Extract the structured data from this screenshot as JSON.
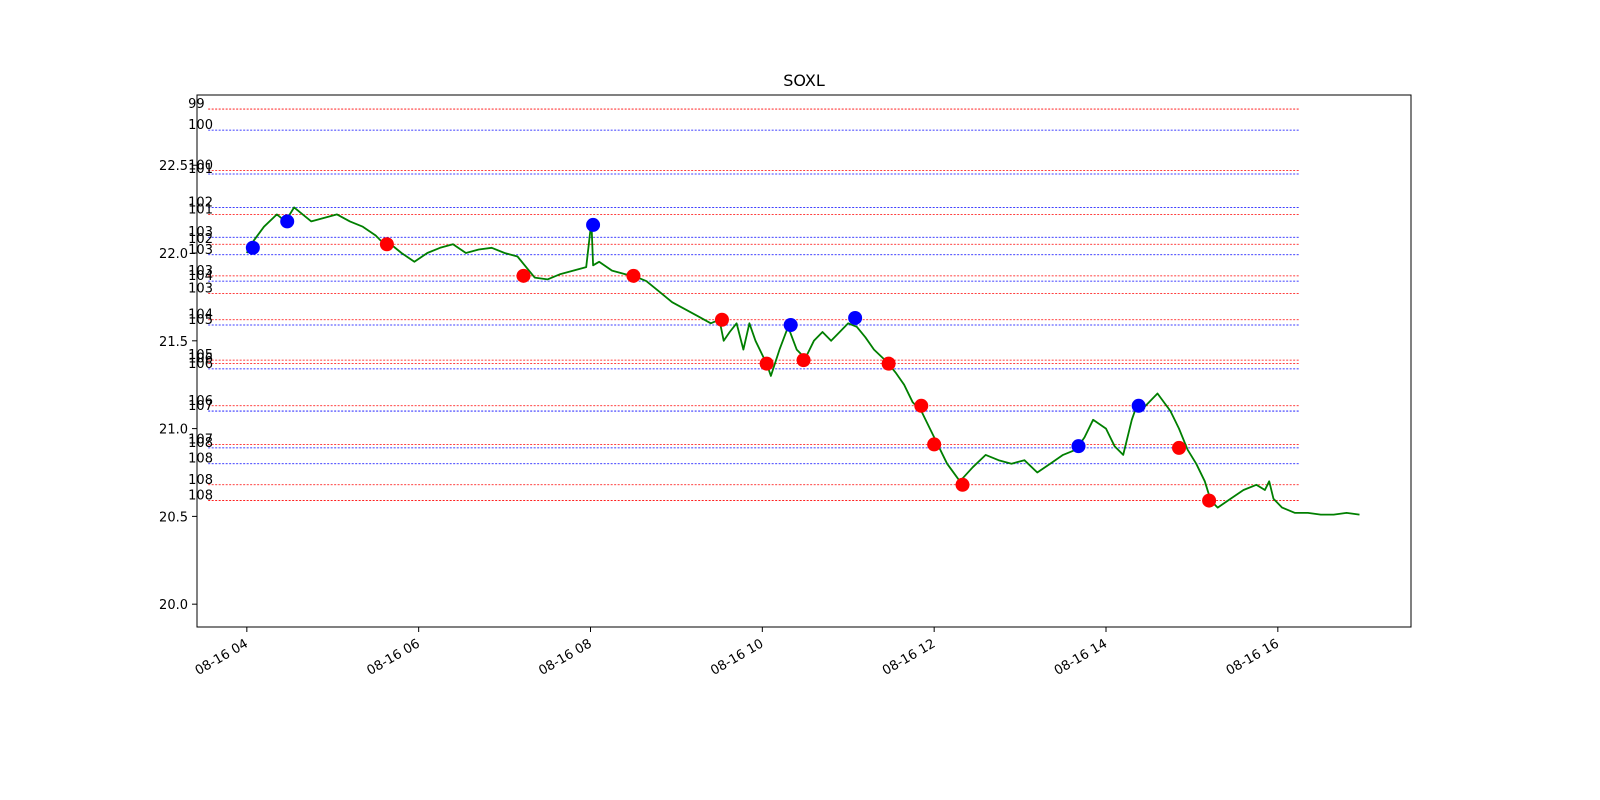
{
  "chart_data": {
    "type": "line",
    "title": "SOXL",
    "xlabel": "",
    "ylabel": "",
    "x_ticks": [
      "08-16 04",
      "08-16 06",
      "08-16 08",
      "08-16 10",
      "08-16 12",
      "08-16 14",
      "08-16 16"
    ],
    "x_tick_hours": [
      4,
      6,
      8,
      10,
      12,
      14,
      16
    ],
    "xlim_hours": [
      3.42,
      17.55
    ],
    "y_ticks": [
      "20.0",
      "20.5",
      "21.0",
      "21.5",
      "22.0",
      "22.5"
    ],
    "y_tick_values": [
      20.0,
      20.5,
      21.0,
      21.5,
      22.0,
      22.5
    ],
    "ylim": [
      19.87,
      22.9
    ],
    "grid": false,
    "colors": {
      "price": "#007f00",
      "buy": "#0000ff",
      "sell": "#ff0000",
      "frame": "#000000"
    },
    "series": [
      {
        "hours": [
          4.0,
          4.08,
          4.2,
          4.35,
          4.45,
          4.55,
          4.65,
          4.75,
          4.9,
          5.05,
          5.2,
          5.35,
          5.5,
          5.6,
          5.7,
          5.8,
          5.95,
          6.1,
          6.25,
          6.4,
          6.55,
          6.7,
          6.85,
          7.0,
          7.15,
          7.25,
          7.35,
          7.5,
          7.65,
          7.8,
          7.95,
          8.01,
          8.03,
          8.1,
          8.25,
          8.4,
          8.5,
          8.65,
          8.8,
          8.95,
          9.1,
          9.25,
          9.4,
          9.5,
          9.55,
          9.62,
          9.7,
          9.78,
          9.85,
          9.92,
          10.0,
          10.05,
          10.1,
          10.2,
          10.3,
          10.4,
          10.5,
          10.6,
          10.7,
          10.8,
          10.9,
          11.0,
          11.1,
          11.2,
          11.3,
          11.45,
          11.55,
          11.65,
          11.75,
          11.85,
          12.0,
          12.15,
          12.3,
          12.45,
          12.6,
          12.75,
          12.9,
          13.05,
          13.2,
          13.35,
          13.5,
          13.65,
          13.75,
          13.85,
          14.0,
          14.1,
          14.2,
          14.3,
          14.35,
          14.4,
          14.5,
          14.6,
          14.75,
          14.85,
          14.95,
          15.05,
          15.15,
          15.22,
          15.3,
          15.45,
          15.6,
          15.75,
          15.85,
          15.9,
          15.95,
          16.05,
          16.2,
          16.35,
          16.5,
          16.65,
          16.8,
          16.95
        ],
        "values": [
          22.0,
          22.07,
          22.15,
          22.22,
          22.18,
          22.26,
          22.22,
          22.18,
          22.2,
          22.22,
          22.18,
          22.15,
          22.1,
          22.05,
          22.04,
          22.0,
          21.95,
          22.0,
          22.03,
          22.05,
          22.0,
          22.02,
          22.03,
          22.0,
          21.98,
          21.92,
          21.86,
          21.85,
          21.88,
          21.9,
          21.92,
          22.18,
          21.93,
          21.95,
          21.9,
          21.88,
          21.87,
          21.84,
          21.78,
          21.72,
          21.68,
          21.64,
          21.6,
          21.62,
          21.5,
          21.55,
          21.6,
          21.45,
          21.6,
          21.5,
          21.42,
          21.37,
          21.3,
          21.45,
          21.58,
          21.45,
          21.4,
          21.5,
          21.55,
          21.5,
          21.55,
          21.6,
          21.58,
          21.52,
          21.45,
          21.38,
          21.32,
          21.25,
          21.15,
          21.1,
          20.95,
          20.8,
          20.7,
          20.78,
          20.85,
          20.82,
          20.8,
          20.82,
          20.75,
          20.8,
          20.85,
          20.88,
          20.95,
          21.05,
          21.0,
          20.9,
          20.85,
          21.05,
          21.12,
          21.1,
          21.15,
          21.2,
          21.1,
          21.0,
          20.88,
          20.8,
          20.7,
          20.59,
          20.55,
          20.6,
          20.65,
          20.68,
          20.65,
          20.7,
          20.6,
          20.55,
          20.52,
          20.52,
          20.51,
          20.51,
          20.52,
          20.51
        ]
      }
    ],
    "buy_markers": {
      "hours": [
        4.07,
        4.47,
        8.03,
        10.33,
        11.08,
        13.68,
        14.38
      ],
      "values": [
        22.03,
        22.18,
        22.16,
        21.59,
        21.63,
        20.9,
        21.13
      ]
    },
    "sell_markers": {
      "hours": [
        5.63,
        7.22,
        8.5,
        9.53,
        10.05,
        10.48,
        11.47,
        11.85,
        12.0,
        12.33,
        14.85,
        15.2
      ],
      "values": [
        22.05,
        21.87,
        21.87,
        21.62,
        21.37,
        21.39,
        21.37,
        21.13,
        20.91,
        20.68,
        20.89,
        20.59
      ]
    },
    "levels": [
      {
        "label": "99",
        "value": 22.82,
        "color": "sell"
      },
      {
        "label": "100",
        "value": 22.7,
        "color": "buy"
      },
      {
        "label": "100",
        "value": 22.47,
        "color": "sell"
      },
      {
        "label": "101",
        "value": 22.45,
        "color": "buy"
      },
      {
        "label": "102",
        "value": 22.26,
        "color": "buy"
      },
      {
        "label": "101",
        "value": 22.22,
        "color": "sell"
      },
      {
        "label": "103",
        "value": 22.09,
        "color": "buy"
      },
      {
        "label": "102",
        "value": 22.05,
        "color": "sell"
      },
      {
        "label": "103",
        "value": 21.99,
        "color": "buy"
      },
      {
        "label": "103",
        "value": 21.87,
        "color": "sell"
      },
      {
        "label": "104",
        "value": 21.84,
        "color": "buy"
      },
      {
        "label": "103",
        "value": 21.77,
        "color": "sell"
      },
      {
        "label": "104",
        "value": 21.62,
        "color": "sell"
      },
      {
        "label": "105",
        "value": 21.59,
        "color": "buy"
      },
      {
        "label": "105",
        "value": 21.39,
        "color": "sell"
      },
      {
        "label": "106",
        "value": 21.37,
        "color": "sell"
      },
      {
        "label": "106",
        "value": 21.34,
        "color": "buy"
      },
      {
        "label": "106",
        "value": 21.13,
        "color": "sell"
      },
      {
        "label": "107",
        "value": 21.1,
        "color": "buy"
      },
      {
        "label": "107",
        "value": 20.91,
        "color": "sell"
      },
      {
        "label": "108",
        "value": 20.89,
        "color": "buy"
      },
      {
        "label": "108",
        "value": 20.8,
        "color": "buy"
      },
      {
        "label": "108",
        "value": 20.68,
        "color": "sell"
      },
      {
        "label": "108",
        "value": 20.59,
        "color": "sell"
      }
    ]
  }
}
